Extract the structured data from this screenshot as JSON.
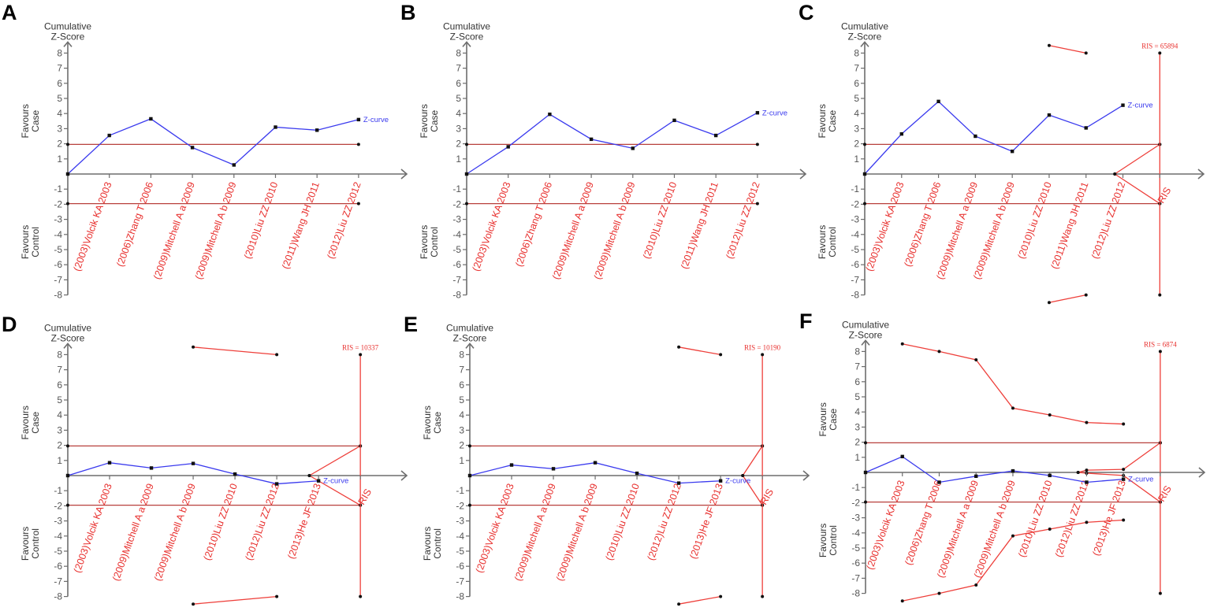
{
  "chart_data": [
    {
      "panel": "A",
      "type": "line",
      "ylabel": [
        "Cumulative",
        "Z-Score"
      ],
      "favours_upper": [
        "Favours",
        "Case"
      ],
      "favours_lower": [
        "Favours",
        "Control"
      ],
      "ylim": [
        -8,
        8
      ],
      "yticks": [
        "8",
        "7",
        "6",
        "5",
        "4",
        "3",
        "2",
        "1",
        "-1",
        "-2",
        "-3",
        "-4",
        "-5",
        "-6",
        "-7",
        "-8"
      ],
      "xlim": [
        0,
        8.16
      ],
      "studies": [
        "(2003)Volcik KA 2003",
        "(2006)Zhang T 2006",
        "(2009)Mitchell A a 2009",
        "(2009)Mitchell A b 2009",
        "(2010)Liu ZZ 2010",
        "(2011)Wang JH 2011",
        "(2012)Liu ZZ 2012"
      ],
      "z": [
        0,
        2.55,
        3.65,
        1.75,
        0.6,
        3.1,
        2.9,
        3.6
      ],
      "curve_label": "Z-curve",
      "conventional_boundary": 1.96,
      "conventional_end": 7,
      "monitoring_upper": [],
      "monitoring_lower": [],
      "futility_upper": [],
      "futility_lower": [],
      "ris": null
    },
    {
      "panel": "B",
      "type": "line",
      "ylabel": [
        "Cumulative",
        "Z-Score"
      ],
      "favours_upper": [
        "Favours",
        "Case"
      ],
      "favours_lower": [
        "Favours",
        "Control"
      ],
      "ylim": [
        -8,
        8
      ],
      "yticks": [
        "8",
        "7",
        "6",
        "5",
        "4",
        "3",
        "2",
        "1",
        "-1",
        "-2",
        "-3",
        "-4",
        "-5",
        "-6",
        "-7",
        "-8"
      ],
      "xlim": [
        0,
        8.16
      ],
      "studies": [
        "(2003)Volcik KA 2003",
        "(2006)Zhang T 2006",
        "(2009)Mitchell A a 2009",
        "(2009)Mitchell A b 2009",
        "(2010)Liu ZZ 2010",
        "(2011)Wang JH 2011",
        "(2012)Liu ZZ 2012"
      ],
      "z": [
        0,
        1.8,
        3.95,
        2.3,
        1.7,
        3.55,
        2.55,
        4.05
      ],
      "curve_label": "Z-curve",
      "conventional_boundary": 1.96,
      "conventional_end": 7,
      "monitoring_upper": [],
      "monitoring_lower": [],
      "futility_upper": [],
      "futility_lower": [],
      "ris": null
    },
    {
      "panel": "C",
      "type": "line",
      "ylabel": [
        "Cumulative",
        "Z-Score"
      ],
      "favours_upper": [
        "Favours",
        "Case"
      ],
      "favours_lower": [
        "Favours",
        "Control"
      ],
      "ylim": [
        -8,
        8
      ],
      "yticks": [
        "8",
        "7",
        "6",
        "5",
        "4",
        "3",
        "2",
        "1",
        "-1",
        "-2",
        "-3",
        "-4",
        "-5",
        "-6",
        "-7",
        "-8"
      ],
      "xlim": [
        0,
        9.19
      ],
      "studies": [
        "(2003)Volcik KA 2003",
        "(2006)Zhang T 2006",
        "(2009)Mitchell A a 2009",
        "(2009)Mitchell A b 2009",
        "(2010)Liu ZZ 2010",
        "(2011)Wang JH 2011",
        "(2012)Liu ZZ 2012"
      ],
      "z": [
        0,
        2.65,
        4.8,
        2.5,
        1.5,
        3.9,
        3.05,
        4.55
      ],
      "curve_label": "Z-curve",
      "conventional_boundary": 1.96,
      "conventional_end": 8,
      "monitoring_upper": [
        [
          5,
          8.5
        ],
        [
          6,
          8.0
        ]
      ],
      "monitoring_lower": [
        [
          5,
          -8.5
        ],
        [
          6,
          -8.0
        ]
      ],
      "futility_upper": [
        [
          6.78,
          0
        ],
        [
          8,
          1.96
        ]
      ],
      "futility_lower": [
        [
          6.78,
          0
        ],
        [
          8,
          -1.96
        ]
      ],
      "ris": {
        "x": 8,
        "label": "RIS = 65894",
        "tick_label": "RIS"
      }
    },
    {
      "panel": "D",
      "type": "line",
      "ylabel": [
        "Cumulative",
        "Z-Score"
      ],
      "favours_upper": [
        "Favours",
        "Case"
      ],
      "favours_lower": [
        "Favours",
        "Control"
      ],
      "ylim": [
        -8,
        8
      ],
      "yticks": [
        "8",
        "7",
        "6",
        "5",
        "4",
        "3",
        "2",
        "1",
        "-1",
        "-2",
        "-3",
        "-4",
        "-5",
        "-6",
        "-7",
        "-8"
      ],
      "xlim": [
        0,
        8.11
      ],
      "studies": [
        "(2003)Volcik KA 2003",
        "(2009)Mitchell A a 2009",
        "(2009)Mitchell A b 2009",
        "(2010)Liu ZZ 2010",
        "(2012)Liu ZZ 2012",
        "(2013)He JF 2013"
      ],
      "z": [
        0,
        0.85,
        0.5,
        0.8,
        0.1,
        -0.55,
        -0.35
      ],
      "curve_label": "Z-curve",
      "conventional_boundary": 1.96,
      "conventional_end": 7,
      "monitoring_upper": [
        [
          3,
          8.5
        ],
        [
          5,
          8.0
        ]
      ],
      "monitoring_lower": [
        [
          3,
          -8.5
        ],
        [
          5,
          -8.0
        ]
      ],
      "futility_upper": [
        [
          5.78,
          0
        ],
        [
          7,
          1.96
        ]
      ],
      "futility_lower": [
        [
          5.78,
          0
        ],
        [
          7,
          -1.96
        ]
      ],
      "ris": {
        "x": 7,
        "label": "RIS = 10337",
        "tick_label": "RIS"
      }
    },
    {
      "panel": "E",
      "type": "line",
      "ylabel": [
        "Cumulative",
        "Z-Score"
      ],
      "favours_upper": [
        "Favours",
        "Case"
      ],
      "favours_lower": [
        "Favours",
        "Control"
      ],
      "ylim": [
        -8,
        8
      ],
      "yticks": [
        "8",
        "7",
        "6",
        "5",
        "4",
        "3",
        "2",
        "1",
        "-1",
        "-2",
        "-3",
        "-4",
        "-5",
        "-6",
        "-7",
        "-8"
      ],
      "xlim": [
        0,
        8.11
      ],
      "studies": [
        "(2003)Volcik KA 2003",
        "(2009)Mitchell A a 2009",
        "(2009)Mitchell A b 2009",
        "(2010)Liu ZZ 2010",
        "(2012)Liu ZZ 2012",
        "(2013)He JF 2013"
      ],
      "z": [
        0,
        0.7,
        0.45,
        0.85,
        0.15,
        -0.5,
        -0.35
      ],
      "curve_label": "Z-curve",
      "conventional_boundary": 1.96,
      "conventional_end": 7,
      "monitoring_upper": [
        [
          5,
          8.5
        ],
        [
          6,
          8.0
        ]
      ],
      "monitoring_lower": [
        [
          5,
          -8.5
        ],
        [
          6,
          -8.0
        ]
      ],
      "futility_upper": [
        [
          6.53,
          0
        ],
        [
          7,
          1.96
        ]
      ],
      "futility_lower": [
        [
          6.53,
          0
        ],
        [
          7,
          -1.96
        ]
      ],
      "ris": {
        "x": 7,
        "label": "RIS = 10190",
        "tick_label": "RIS"
      }
    },
    {
      "panel": "F",
      "type": "line",
      "ylabel": [
        "Cumulative",
        "Z-Score"
      ],
      "favours_upper": [
        "Favours",
        "Case"
      ],
      "favours_lower": [
        "Favours",
        "Control"
      ],
      "ylim": [
        -8,
        8
      ],
      "yticks": [
        "8",
        "7",
        "6",
        "5",
        "4",
        "3",
        "2",
        "1",
        "-1",
        "-2",
        "-3",
        "-4",
        "-5",
        "-6",
        "-7",
        "-8"
      ],
      "xlim": [
        0,
        9.2
      ],
      "studies": [
        "(2003)Volcik KA 2003",
        "(2006)Zhang T 2006",
        "(2009)Mitchell A a 2009",
        "(2009)Mitchell A b 2009",
        "(2010)Liu ZZ 2010",
        "(2012)Liu ZZ 2012",
        "(2013)He JF 2013"
      ],
      "z": [
        0,
        1.05,
        -0.65,
        -0.25,
        0.1,
        -0.2,
        -0.65,
        -0.45
      ],
      "curve_label": "Z-curve",
      "conventional_boundary": 1.96,
      "conventional_end": 8,
      "monitoring_upper": [
        [
          1,
          8.5
        ],
        [
          2,
          8.0
        ],
        [
          3,
          7.45
        ],
        [
          4,
          4.25
        ],
        [
          5,
          3.8
        ],
        [
          6,
          3.3
        ],
        [
          7,
          3.2
        ]
      ],
      "monitoring_lower": [
        [
          1,
          -8.5
        ],
        [
          2,
          -8.0
        ],
        [
          3,
          -7.45
        ],
        [
          4,
          -4.2
        ],
        [
          5,
          -3.75
        ],
        [
          6,
          -3.3
        ],
        [
          7,
          -3.15
        ]
      ],
      "futility_upper": [
        [
          5.77,
          0
        ],
        [
          6,
          0.15
        ],
        [
          7,
          0.2
        ],
        [
          8,
          1.96
        ]
      ],
      "futility_lower": [
        [
          5.77,
          0
        ],
        [
          6,
          -0.05
        ],
        [
          7,
          -0.2
        ],
        [
          8,
          -1.96
        ]
      ],
      "ris": {
        "x": 8,
        "label": "RIS = 6874",
        "tick_label": "RIS"
      }
    }
  ]
}
